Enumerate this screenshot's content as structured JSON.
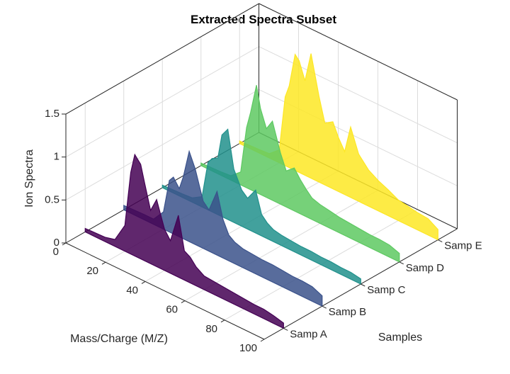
{
  "chart_data": {
    "type": "area",
    "title": "Extracted Spectra Subset",
    "xlabel": "Mass/Charge (M/Z)",
    "ylabel": "Samples",
    "zlabel": "Ion Spectra",
    "xlim": [
      0,
      100
    ],
    "zlim": [
      0,
      1.5
    ],
    "x_ticks": [
      "0",
      "20",
      "40",
      "60",
      "80",
      "100"
    ],
    "z_ticks": [
      "0",
      "0.5",
      "1",
      "1.5"
    ],
    "categories": [
      "Samp A",
      "Samp B",
      "Samp C",
      "Samp D",
      "Samp E"
    ],
    "grid": true,
    "colors": [
      "#440154",
      "#3b528b",
      "#21918c",
      "#5ec962",
      "#fde725"
    ],
    "x": [
      0,
      10,
      15,
      20,
      23,
      25,
      28,
      30,
      33,
      36,
      40,
      43,
      47,
      50,
      53,
      56,
      60,
      65,
      70,
      75,
      80,
      85,
      90,
      95,
      100
    ],
    "series": [
      {
        "name": "Samp A",
        "values": [
          0.04,
          0.05,
          0.08,
          0.3,
          0.95,
          1.18,
          1.1,
          0.9,
          0.62,
          0.78,
          0.48,
          0.38,
          0.72,
          0.34,
          0.3,
          0.22,
          0.16,
          0.15,
          0.14,
          0.13,
          0.12,
          0.11,
          0.11,
          0.09,
          0.06
        ]
      },
      {
        "name": "Samp B",
        "values": [
          0.05,
          0.06,
          0.06,
          0.2,
          0.6,
          0.66,
          0.56,
          0.72,
          1.05,
          0.88,
          0.55,
          0.48,
          0.74,
          0.45,
          0.3,
          0.25,
          0.22,
          0.21,
          0.2,
          0.2,
          0.19,
          0.18,
          0.18,
          0.17,
          0.12
        ]
      },
      {
        "name": "Samp C",
        "values": [
          0.03,
          0.04,
          0.05,
          0.12,
          0.55,
          0.62,
          0.66,
          0.95,
          1.05,
          0.62,
          0.42,
          0.36,
          0.5,
          0.25,
          0.18,
          0.14,
          0.12,
          0.11,
          0.1,
          0.1,
          0.09,
          0.09,
          0.08,
          0.08,
          0.06
        ]
      },
      {
        "name": "Samp D",
        "values": [
          0.03,
          0.04,
          0.05,
          0.15,
          0.7,
          0.9,
          1.25,
          1.0,
          0.8,
          0.92,
          0.6,
          0.42,
          0.5,
          0.4,
          0.32,
          0.25,
          0.22,
          0.2,
          0.18,
          0.17,
          0.16,
          0.15,
          0.15,
          0.14,
          0.1
        ]
      },
      {
        "name": "Samp E",
        "values": [
          0.03,
          0.04,
          0.05,
          0.15,
          0.8,
          0.95,
          1.35,
          1.3,
          1.1,
          1.45,
          1.0,
          0.72,
          0.78,
          0.62,
          0.5,
          0.82,
          0.55,
          0.42,
          0.35,
          0.3,
          0.24,
          0.22,
          0.2,
          0.19,
          0.12
        ]
      }
    ]
  }
}
